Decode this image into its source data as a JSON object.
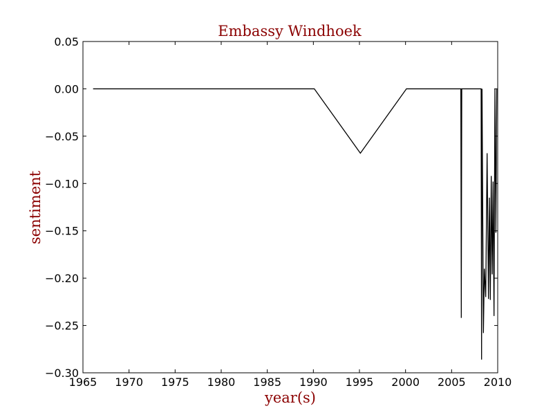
{
  "chart_data": {
    "type": "line",
    "title": "Embassy Windhoek",
    "xlabel": "year(s)",
    "ylabel": "sentiment",
    "xlim": [
      1965,
      2010
    ],
    "ylim": [
      -0.3,
      0.05
    ],
    "xticks": [
      1965,
      1970,
      1975,
      1980,
      1985,
      1990,
      1995,
      2000,
      2005,
      2010
    ],
    "xtick_labels": [
      "1965",
      "1970",
      "1975",
      "1980",
      "1985",
      "1990",
      "1995",
      "2000",
      "2005",
      "2010"
    ],
    "yticks": [
      0.05,
      0.0,
      -0.05,
      -0.1,
      -0.15,
      -0.2,
      -0.25,
      -0.3
    ],
    "ytick_labels": [
      "0.05",
      "0.00",
      "−0.05",
      "−0.10",
      "−0.15",
      "−0.20",
      "−0.25",
      "−0.30"
    ],
    "grid": false,
    "line_color": "#000000",
    "title_color": "#8b0000",
    "series": [
      {
        "x": [
          1966.1,
          1990.1,
          1995.1,
          2000.1,
          2006.0,
          2006.05,
          2006.1,
          2006.15,
          2008.2,
          2008.25,
          2008.3,
          2008.45,
          2008.55,
          2008.7,
          2008.85,
          2009.0,
          2009.1,
          2009.2,
          2009.3,
          2009.4,
          2009.5,
          2009.6,
          2009.7,
          2009.8,
          2009.9
        ],
        "y": [
          0.0,
          0.0,
          -0.068,
          0.0,
          0.0,
          -0.242,
          0.0,
          0.0,
          0.0,
          -0.286,
          0.0,
          -0.258,
          -0.19,
          -0.22,
          -0.068,
          -0.222,
          -0.115,
          -0.223,
          -0.092,
          -0.196,
          -0.098,
          -0.24,
          0.0,
          -0.152,
          0.0
        ]
      }
    ]
  }
}
